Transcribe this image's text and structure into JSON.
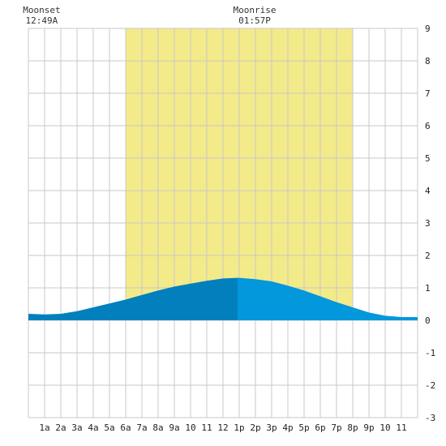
{
  "chart_data": {
    "type": "area",
    "title": "",
    "xlabel": "",
    "ylabel": "",
    "x_tick_labels": [
      "1a",
      "2a",
      "3a",
      "4a",
      "5a",
      "6a",
      "7a",
      "8a",
      "9a",
      "10",
      "11",
      "12",
      "1p",
      "2p",
      "3p",
      "4p",
      "5p",
      "6p",
      "7p",
      "8p",
      "9p",
      "10",
      "11"
    ],
    "xlim": [
      0,
      24
    ],
    "ylim": [
      -3,
      9
    ],
    "y_ticks": [
      -3,
      -2,
      -1,
      0,
      1,
      2,
      3,
      4,
      5,
      6,
      7,
      8,
      9
    ],
    "grid": true,
    "daylight": {
      "start": 6,
      "end": 20
    },
    "annotations": [
      {
        "name": "moonset",
        "label": "Moonset",
        "time": "12:49A",
        "x": 0.82
      },
      {
        "name": "moonrise",
        "label": "Moonrise",
        "time": "01:57P",
        "x": 13.95
      }
    ],
    "series": [
      {
        "x": [
          0,
          1,
          2,
          3,
          4,
          5,
          6,
          7,
          8,
          9,
          10,
          11,
          12,
          12.9,
          13,
          14,
          15,
          16,
          17,
          18,
          19,
          20,
          21,
          22,
          23,
          24
        ],
        "y": [
          0.2,
          0.18,
          0.2,
          0.28,
          0.4,
          0.52,
          0.64,
          0.78,
          0.92,
          1.04,
          1.13,
          1.22,
          1.29,
          1.31,
          1.31,
          1.27,
          1.2,
          1.07,
          0.92,
          0.74,
          0.56,
          0.4,
          0.24,
          0.14,
          0.1,
          0.1
        ]
      }
    ],
    "colors": {
      "background": "#ffffff",
      "daylight": "#f3ea8a",
      "grid": "#c8c8c8",
      "area_past": "#0180bd",
      "area_future": "#0397dc"
    },
    "split_x": 12.9
  }
}
